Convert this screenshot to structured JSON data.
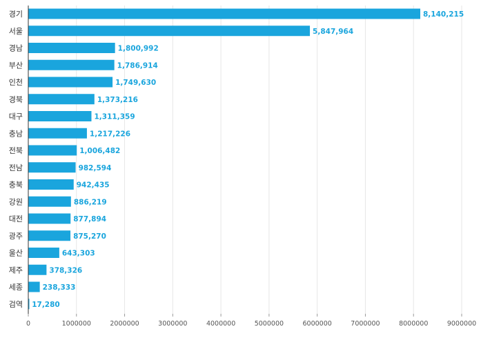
{
  "chart_data": {
    "type": "bar",
    "orientation": "horizontal",
    "categories": [
      "경기",
      "서울",
      "경남",
      "부산",
      "인천",
      "경북",
      "대구",
      "충남",
      "전북",
      "전남",
      "충북",
      "강원",
      "대전",
      "광주",
      "울산",
      "제주",
      "세종",
      "검역"
    ],
    "values": [
      8140215,
      5847964,
      1800992,
      1786914,
      1749630,
      1373216,
      1311359,
      1217226,
      1006482,
      982594,
      942435,
      886219,
      877894,
      875270,
      643303,
      378326,
      238333,
      17280
    ],
    "value_labels": [
      "8,140,215",
      "5,847,964",
      "1,800,992",
      "1,786,914",
      "1,749,630",
      "1,373,216",
      "1,311,359",
      "1,217,226",
      "1,006,482",
      "982,594",
      "942,435",
      "886,219",
      "877,894",
      "875,270",
      "643,303",
      "378,326",
      "238,333",
      "17,280"
    ],
    "x_ticks": [
      "0",
      "1000000",
      "2000000",
      "3000000",
      "4000000",
      "5000000",
      "6000000",
      "7000000",
      "8000000",
      "9000000"
    ],
    "xlim": [
      0,
      9000000
    ],
    "grid": "vertical",
    "title": "",
    "xlabel": "",
    "ylabel": "",
    "colors": {
      "bar": "#1aa5dd",
      "value_label": "#1aa5dd",
      "grid": "#e6e6e6",
      "axis": "#333333"
    }
  }
}
